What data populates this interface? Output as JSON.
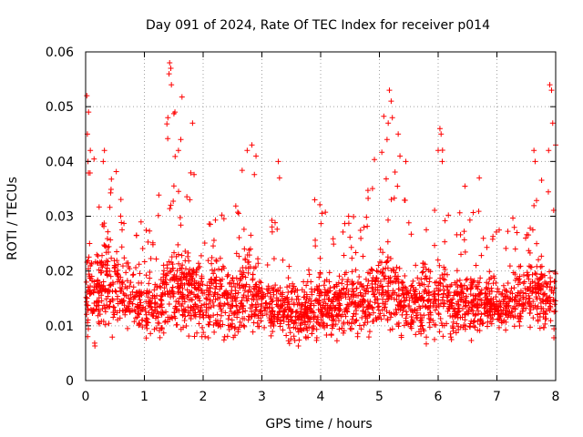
{
  "chart_data": {
    "type": "scatter",
    "title": "Day 091 of 2024, Rate Of TEC Index for receiver p014",
    "xlabel": "GPS time / hours",
    "ylabel": "ROTI / TECUs",
    "xlim": [
      0,
      8
    ],
    "ylim": [
      0,
      0.06
    ],
    "x_ticks": [
      0,
      1,
      2,
      3,
      4,
      5,
      6,
      7,
      8
    ],
    "x_tick_labels": [
      "0",
      "1",
      "2",
      "3",
      "4",
      "5",
      "6",
      "7",
      "8"
    ],
    "y_ticks": [
      0,
      0.01,
      0.02,
      0.03,
      0.04,
      0.05,
      0.06
    ],
    "y_tick_labels": [
      "0",
      "0.01",
      "0.02",
      "0.03",
      "0.04",
      "0.05",
      "0.06"
    ],
    "grid": true,
    "marker": "+",
    "color": "#ff0000",
    "envelope": {
      "x": [
        0,
        0.25,
        0.5,
        0.75,
        1,
        1.25,
        1.5,
        1.75,
        2,
        2.25,
        2.5,
        2.75,
        3,
        3.25,
        3.5,
        3.75,
        4,
        4.25,
        4.5,
        4.75,
        5,
        5.25,
        5.5,
        5.75,
        6,
        6.25,
        6.5,
        6.75,
        7,
        7.25,
        7.5,
        7.75,
        8
      ],
      "max": [
        0.052,
        0.033,
        0.042,
        0.03,
        0.029,
        0.038,
        0.058,
        0.047,
        0.031,
        0.03,
        0.033,
        0.043,
        0.036,
        0.03,
        0.02,
        0.018,
        0.033,
        0.03,
        0.031,
        0.03,
        0.053,
        0.045,
        0.033,
        0.036,
        0.046,
        0.035,
        0.037,
        0.031,
        0.028,
        0.03,
        0.03,
        0.04,
        0.054
      ],
      "mean": [
        0.016,
        0.016,
        0.017,
        0.015,
        0.013,
        0.014,
        0.016,
        0.016,
        0.015,
        0.015,
        0.014,
        0.016,
        0.014,
        0.013,
        0.012,
        0.012,
        0.013,
        0.014,
        0.014,
        0.014,
        0.016,
        0.016,
        0.014,
        0.014,
        0.015,
        0.014,
        0.014,
        0.014,
        0.013,
        0.014,
        0.015,
        0.015,
        0.016
      ],
      "min": [
        0.004,
        0.006,
        0.006,
        0.006,
        0.005,
        0.006,
        0.006,
        0.006,
        0.005,
        0.005,
        0.004,
        0.005,
        0.006,
        0.006,
        0.005,
        0.005,
        0.005,
        0.006,
        0.006,
        0.006,
        0.006,
        0.006,
        0.006,
        0.006,
        0.005,
        0.006,
        0.006,
        0.006,
        0.007,
        0.006,
        0.006,
        0.006,
        0.006
      ]
    },
    "peaks": [
      {
        "x": 0.02,
        "y": 0.052
      },
      {
        "x": 0.05,
        "y": 0.049
      },
      {
        "x": 0.03,
        "y": 0.045
      },
      {
        "x": 0.08,
        "y": 0.042
      },
      {
        "x": 0.04,
        "y": 0.04
      },
      {
        "x": 0.32,
        "y": 0.042
      },
      {
        "x": 0.3,
        "y": 0.04
      },
      {
        "x": 1.43,
        "y": 0.058
      },
      {
        "x": 1.45,
        "y": 0.057
      },
      {
        "x": 1.42,
        "y": 0.056
      },
      {
        "x": 1.46,
        "y": 0.054
      },
      {
        "x": 1.4,
        "y": 0.048
      },
      {
        "x": 1.52,
        "y": 0.049
      },
      {
        "x": 1.82,
        "y": 0.047
      },
      {
        "x": 1.62,
        "y": 0.044
      },
      {
        "x": 1.58,
        "y": 0.042
      },
      {
        "x": 2.83,
        "y": 0.043
      },
      {
        "x": 2.9,
        "y": 0.041
      },
      {
        "x": 2.75,
        "y": 0.042
      },
      {
        "x": 3.28,
        "y": 0.04
      },
      {
        "x": 3.3,
        "y": 0.037
      },
      {
        "x": 3.9,
        "y": 0.033
      },
      {
        "x": 5.17,
        "y": 0.053
      },
      {
        "x": 5.2,
        "y": 0.051
      },
      {
        "x": 5.22,
        "y": 0.048
      },
      {
        "x": 5.15,
        "y": 0.047
      },
      {
        "x": 5.13,
        "y": 0.044
      },
      {
        "x": 5.32,
        "y": 0.045
      },
      {
        "x": 5.35,
        "y": 0.041
      },
      {
        "x": 5.45,
        "y": 0.04
      },
      {
        "x": 6.03,
        "y": 0.046
      },
      {
        "x": 6.05,
        "y": 0.045
      },
      {
        "x": 6.0,
        "y": 0.042
      },
      {
        "x": 6.07,
        "y": 0.04
      },
      {
        "x": 6.7,
        "y": 0.037
      },
      {
        "x": 7.63,
        "y": 0.042
      },
      {
        "x": 7.65,
        "y": 0.04
      },
      {
        "x": 7.9,
        "y": 0.054
      },
      {
        "x": 7.93,
        "y": 0.053
      },
      {
        "x": 7.95,
        "y": 0.047
      },
      {
        "x": 7.88,
        "y": 0.042
      },
      {
        "x": 8.0,
        "y": 0.043
      }
    ],
    "point_count": 2600
  }
}
